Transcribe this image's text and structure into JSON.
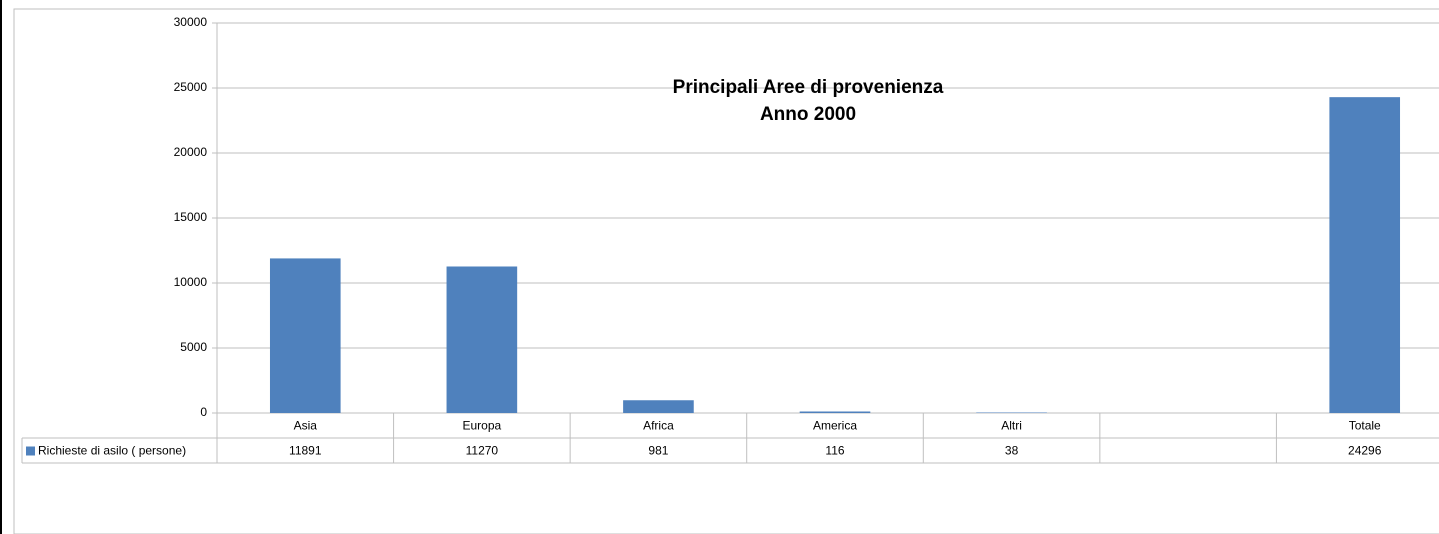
{
  "chart_data": {
    "type": "bar",
    "title": "Principali Aree di provenienza",
    "subtitle": "Anno 2000",
    "categories": [
      "Asia",
      "Europa",
      "Africa",
      "America",
      "Altri",
      null,
      "Totale"
    ],
    "series": [
      {
        "name": "Richieste di asilo ( persone)",
        "color": "#4f81bd",
        "values": [
          11891,
          11270,
          981,
          116,
          38,
          null,
          24296
        ]
      }
    ],
    "ylim": [
      0,
      30000
    ],
    "yticks": [
      0,
      5000,
      10000,
      15000,
      20000,
      25000,
      30000
    ],
    "grid": true,
    "data_table": true
  }
}
